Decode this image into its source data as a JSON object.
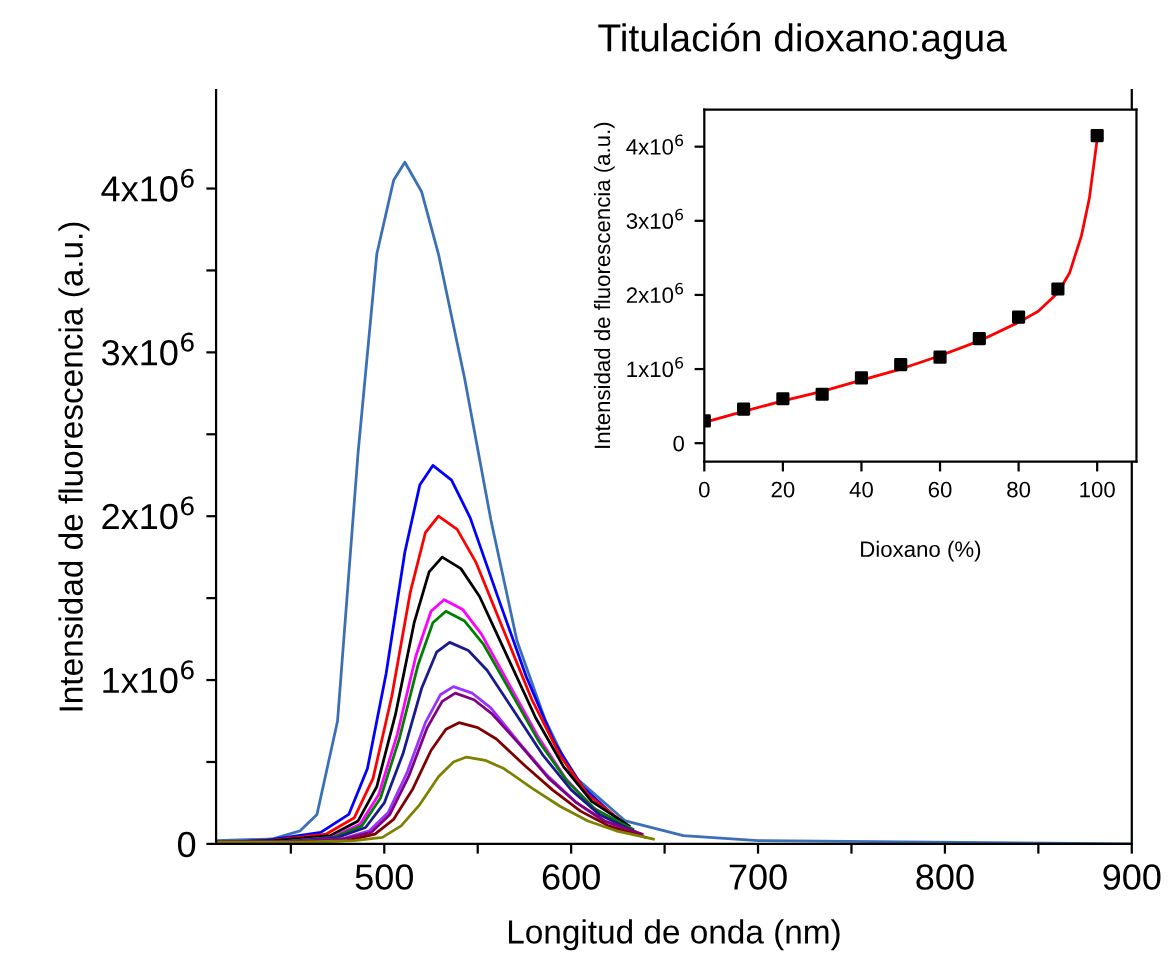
{
  "chart_data": [
    {
      "type": "line",
      "title": "Titulación dioxano:agua",
      "xlabel": "Longitud de onda (nm)",
      "ylabel": "Intensidad de fluorescencia (a.u.)",
      "xlim": [
        410,
        900
      ],
      "ylim": [
        0,
        4600000
      ],
      "xticks": [
        {
          "value": 450,
          "label": null
        },
        500,
        {
          "value": 550,
          "label": null
        },
        600,
        {
          "value": 650,
          "label": null
        },
        700,
        {
          "value": 750,
          "label": null
        },
        800,
        {
          "value": 850,
          "label": null
        },
        900
      ],
      "yticks": [
        0,
        {
          "value": 500000,
          "label": null
        },
        {
          "value": 1000000,
          "label": "1x10$^{6}$"
        },
        {
          "value": 1500000,
          "label": null
        },
        {
          "value": 2000000,
          "label": "2x10$^{6}$"
        },
        {
          "value": 2500000,
          "label": null
        },
        {
          "value": 3000000,
          "label": "3x10$^{6}$"
        },
        {
          "value": 3500000,
          "label": null
        },
        {
          "value": 4000000,
          "label": "4x10$^{6}$"
        }
      ],
      "grid": false,
      "legend": false,
      "series": [
        {
          "color": "#3b6fb6",
          "x": [
            410,
            440,
            455,
            464,
            475,
            486,
            496,
            505,
            511,
            520,
            529,
            543,
            557,
            571,
            586,
            600,
            629,
            660,
            700,
            900
          ],
          "values": [
            20000,
            30000,
            80000,
            180000,
            750000,
            2390000,
            3600000,
            4050000,
            4160000,
            3980000,
            3600000,
            2840000,
            1980000,
            1240000,
            760000,
            430000,
            140000,
            50000,
            20000,
            0
          ]
        },
        {
          "color": "#0000ff",
          "x": [
            410,
            436,
            466,
            481,
            491,
            501,
            511,
            519,
            526,
            536,
            546,
            561,
            576,
            591,
            606,
            626
          ],
          "values": [
            10000,
            20000,
            70000,
            180000,
            460000,
            1040000,
            1780000,
            2190000,
            2310000,
            2220000,
            1990000,
            1500000,
            1020000,
            620000,
            350000,
            140000
          ]
        },
        {
          "color": "#ff0000",
          "x": [
            410,
            439,
            469,
            484,
            494,
            504,
            514,
            522,
            529,
            539,
            549,
            564,
            579,
            594,
            609,
            629
          ],
          "values": [
            10000,
            20000,
            60000,
            160000,
            400000,
            900000,
            1540000,
            1900000,
            2000000,
            1920000,
            1720000,
            1300000,
            880000,
            540000,
            300000,
            120000
          ]
        },
        {
          "color": "#000000",
          "x": [
            410,
            441,
            471,
            486,
            496,
            506,
            516,
            524,
            531,
            541,
            551,
            566,
            581,
            596,
            611,
            631
          ],
          "values": [
            10000,
            20000,
            50000,
            140000,
            350000,
            790000,
            1350000,
            1660000,
            1750000,
            1680000,
            1510000,
            1140000,
            770000,
            470000,
            260000,
            110000
          ]
        },
        {
          "color": "#ff00ff",
          "x": [
            410,
            442,
            472,
            487,
            497,
            507,
            517,
            525,
            532,
            542,
            552,
            567,
            582,
            597,
            612,
            632
          ],
          "values": [
            10000,
            10000,
            40000,
            120000,
            300000,
            670000,
            1150000,
            1420000,
            1490000,
            1430000,
            1280000,
            970000,
            660000,
            400000,
            220000,
            90000
          ]
        },
        {
          "color": "#008000",
          "x": [
            410,
            443,
            473,
            488,
            498,
            508,
            518,
            526,
            533,
            543,
            553,
            568,
            583,
            598,
            613,
            633
          ],
          "values": [
            10000,
            10000,
            40000,
            110000,
            280000,
            640000,
            1090000,
            1350000,
            1420000,
            1360000,
            1220000,
            920000,
            620000,
            380000,
            210000,
            90000
          ]
        },
        {
          "color": "#1a1a8c",
          "x": [
            410,
            445,
            475,
            490,
            500,
            510,
            520,
            528,
            535,
            545,
            555,
            570,
            585,
            600,
            615,
            635
          ],
          "values": [
            10000,
            10000,
            40000,
            100000,
            250000,
            550000,
            950000,
            1170000,
            1230000,
            1180000,
            1060000,
            800000,
            540000,
            330000,
            180000,
            70000
          ]
        },
        {
          "color": "#9933ff",
          "x": [
            410,
            447,
            477,
            492,
            502,
            512,
            522,
            530,
            537,
            547,
            557,
            572,
            587,
            602,
            617,
            637
          ],
          "values": [
            10000,
            10000,
            30000,
            80000,
            190000,
            430000,
            740000,
            910000,
            960000,
            920000,
            830000,
            620000,
            420000,
            260000,
            140000,
            60000
          ]
        },
        {
          "color": "#800080",
          "x": [
            410,
            448,
            478,
            493,
            503,
            513,
            523,
            531,
            538,
            548,
            558,
            573,
            588,
            603,
            618,
            638
          ],
          "values": [
            10000,
            10000,
            30000,
            70000,
            180000,
            410000,
            710000,
            870000,
            920000,
            880000,
            790000,
            600000,
            400000,
            250000,
            140000,
            60000
          ]
        },
        {
          "color": "#800000",
          "x": [
            410,
            450,
            480,
            495,
            505,
            515,
            525,
            533,
            540,
            550,
            560,
            575,
            590,
            605,
            620,
            640
          ],
          "values": [
            10000,
            10000,
            20000,
            60000,
            150000,
            330000,
            570000,
            700000,
            740000,
            710000,
            640000,
            480000,
            330000,
            200000,
            110000,
            40000
          ]
        },
        {
          "color": "#808000",
          "x": [
            410,
            454,
            484,
            499,
            509,
            519,
            529,
            537,
            544,
            554,
            564,
            579,
            594,
            609,
            624,
            644
          ],
          "values": [
            10000,
            10000,
            20000,
            40000,
            110000,
            240000,
            410000,
            500000,
            530000,
            510000,
            460000,
            340000,
            230000,
            140000,
            80000,
            30000
          ]
        }
      ]
    },
    {
      "type": "scatter",
      "xlabel": "Dioxano (%)",
      "ylabel": "Intensidad de fluorescencia (a.u.)",
      "xlim": [
        0,
        110
      ],
      "ylim": [
        -250000,
        4500000
      ],
      "xticks": [
        0,
        20,
        40,
        60,
        80,
        100
      ],
      "yticks": [
        0,
        {
          "value": 1000000,
          "label": "1x10$^{6}$"
        },
        {
          "value": 2000000,
          "label": "2x10$^{6}$"
        },
        {
          "value": 3000000,
          "label": "3x10$^{6}$"
        },
        {
          "value": 4000000,
          "label": "4x10$^{6}$"
        }
      ],
      "grid": false,
      "legend": false,
      "series": [
        {
          "type": "scatter",
          "color": "#000000",
          "marker": "square",
          "x": [
            0,
            10,
            20,
            30,
            40,
            50,
            60,
            70,
            80,
            90,
            100
          ],
          "values": [
            300000,
            460000,
            600000,
            660000,
            880000,
            1060000,
            1160000,
            1410000,
            1700000,
            2080000,
            4150000
          ]
        },
        {
          "type": "line",
          "color": "#ff0000",
          "marker": "none",
          "x": [
            0,
            10,
            20,
            30,
            40,
            50,
            60,
            70,
            80,
            85,
            90,
            93,
            96,
            98,
            100
          ],
          "values": [
            280000,
            430000,
            570000,
            700000,
            850000,
            1000000,
            1180000,
            1380000,
            1630000,
            1780000,
            2030000,
            2300000,
            2800000,
            3300000,
            4100000
          ]
        }
      ]
    }
  ]
}
